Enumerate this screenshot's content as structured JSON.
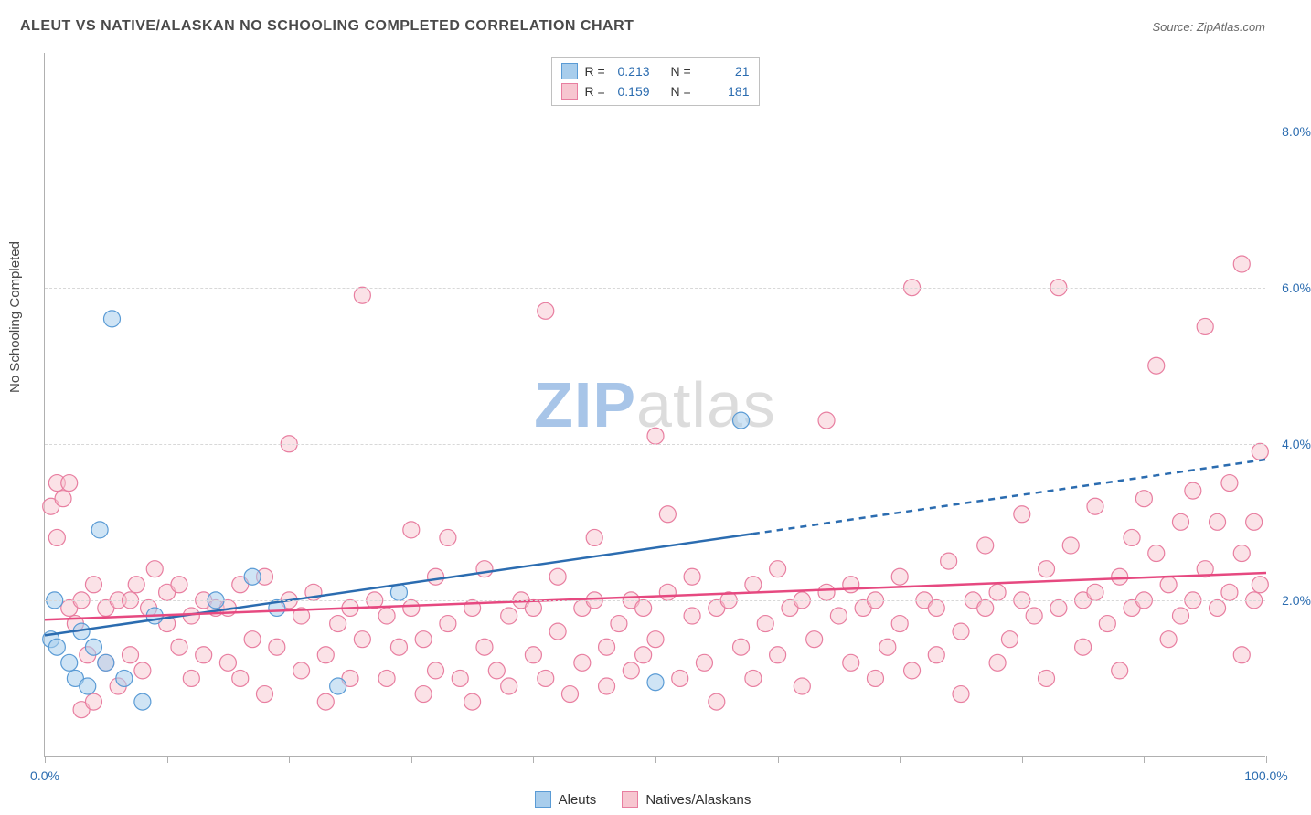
{
  "title": "ALEUT VS NATIVE/ALASKAN NO SCHOOLING COMPLETED CORRELATION CHART",
  "source": "Source: ZipAtlas.com",
  "y_axis_label": "No Schooling Completed",
  "watermark": {
    "left": "ZIP",
    "right": "atlas"
  },
  "chart": {
    "type": "scatter",
    "xlim": [
      0,
      100
    ],
    "ylim": [
      0,
      9
    ],
    "x_ticks": [
      0,
      10,
      20,
      30,
      40,
      50,
      60,
      70,
      80,
      90,
      100
    ],
    "x_tick_labels": {
      "0": "0.0%",
      "100": "100.0%"
    },
    "y_ticks": [
      2,
      4,
      6,
      8
    ],
    "y_tick_labels": [
      "2.0%",
      "4.0%",
      "6.0%",
      "8.0%"
    ],
    "background_color": "#ffffff",
    "grid_color": "#d8d8d8",
    "axis_color": "#b0b0b0",
    "tick_label_color": "#2b6cb0",
    "series": [
      {
        "name": "Aleuts",
        "fill": "#a8cdec",
        "stroke": "#5a9bd5",
        "fill_opacity": 0.55,
        "marker_radius": 9,
        "R": "0.213",
        "N": "21",
        "trend": {
          "x1": 0,
          "y1": 1.55,
          "x2_solid": 58,
          "y2_solid": 2.85,
          "x2": 100,
          "y2": 3.8,
          "stroke": "#2b6cb0",
          "width": 2.5
        },
        "points": [
          {
            "x": 0.5,
            "y": 1.5
          },
          {
            "x": 1,
            "y": 1.4
          },
          {
            "x": 0.8,
            "y": 2.0
          },
          {
            "x": 2,
            "y": 1.2
          },
          {
            "x": 2.5,
            "y": 1.0
          },
          {
            "x": 3,
            "y": 1.6
          },
          {
            "x": 3.5,
            "y": 0.9
          },
          {
            "x": 4,
            "y": 1.4
          },
          {
            "x": 4.5,
            "y": 2.9
          },
          {
            "x": 5,
            "y": 1.2
          },
          {
            "x": 5.5,
            "y": 5.6
          },
          {
            "x": 6.5,
            "y": 1.0
          },
          {
            "x": 8,
            "y": 0.7
          },
          {
            "x": 9,
            "y": 1.8
          },
          {
            "x": 14,
            "y": 2.0
          },
          {
            "x": 17,
            "y": 2.3
          },
          {
            "x": 19,
            "y": 1.9
          },
          {
            "x": 24,
            "y": 0.9
          },
          {
            "x": 29,
            "y": 2.1
          },
          {
            "x": 50,
            "y": 0.95
          },
          {
            "x": 57,
            "y": 4.3
          }
        ]
      },
      {
        "name": "Natives/Alaskans",
        "fill": "#f7c6d0",
        "stroke": "#e87ea0",
        "fill_opacity": 0.5,
        "marker_radius": 9,
        "R": "0.159",
        "N": "181",
        "trend": {
          "x1": 0,
          "y1": 1.75,
          "x2_solid": 100,
          "y2_solid": 2.35,
          "x2": 100,
          "y2": 2.35,
          "stroke": "#e64980",
          "width": 2.5
        },
        "points": [
          {
            "x": 0.5,
            "y": 3.2
          },
          {
            "x": 1,
            "y": 2.8
          },
          {
            "x": 1,
            "y": 3.5
          },
          {
            "x": 1.5,
            "y": 3.3
          },
          {
            "x": 2,
            "y": 1.9
          },
          {
            "x": 2,
            "y": 3.5
          },
          {
            "x": 2.5,
            "y": 1.7
          },
          {
            "x": 3,
            "y": 2.0
          },
          {
            "x": 3,
            "y": 0.6
          },
          {
            "x": 3.5,
            "y": 1.3
          },
          {
            "x": 4,
            "y": 2.2
          },
          {
            "x": 4,
            "y": 0.7
          },
          {
            "x": 5,
            "y": 1.9
          },
          {
            "x": 5,
            "y": 1.2
          },
          {
            "x": 6,
            "y": 2.0
          },
          {
            "x": 6,
            "y": 0.9
          },
          {
            "x": 7,
            "y": 2.0
          },
          {
            "x": 7,
            "y": 1.3
          },
          {
            "x": 7.5,
            "y": 2.2
          },
          {
            "x": 8,
            "y": 1.1
          },
          {
            "x": 8.5,
            "y": 1.9
          },
          {
            "x": 9,
            "y": 2.4
          },
          {
            "x": 10,
            "y": 1.7
          },
          {
            "x": 10,
            "y": 2.1
          },
          {
            "x": 11,
            "y": 1.4
          },
          {
            "x": 11,
            "y": 2.2
          },
          {
            "x": 12,
            "y": 1.0
          },
          {
            "x": 12,
            "y": 1.8
          },
          {
            "x": 13,
            "y": 2.0
          },
          {
            "x": 13,
            "y": 1.3
          },
          {
            "x": 14,
            "y": 1.9
          },
          {
            "x": 15,
            "y": 1.2
          },
          {
            "x": 15,
            "y": 1.9
          },
          {
            "x": 16,
            "y": 1.0
          },
          {
            "x": 16,
            "y": 2.2
          },
          {
            "x": 17,
            "y": 1.5
          },
          {
            "x": 18,
            "y": 2.3
          },
          {
            "x": 18,
            "y": 0.8
          },
          {
            "x": 19,
            "y": 1.4
          },
          {
            "x": 20,
            "y": 2.0
          },
          {
            "x": 20,
            "y": 4.0
          },
          {
            "x": 21,
            "y": 1.1
          },
          {
            "x": 21,
            "y": 1.8
          },
          {
            "x": 22,
            "y": 2.1
          },
          {
            "x": 23,
            "y": 1.3
          },
          {
            "x": 23,
            "y": 0.7
          },
          {
            "x": 24,
            "y": 1.7
          },
          {
            "x": 25,
            "y": 1.0
          },
          {
            "x": 25,
            "y": 1.9
          },
          {
            "x": 26,
            "y": 5.9
          },
          {
            "x": 26,
            "y": 1.5
          },
          {
            "x": 27,
            "y": 2.0
          },
          {
            "x": 28,
            "y": 1.8
          },
          {
            "x": 28,
            "y": 1.0
          },
          {
            "x": 29,
            "y": 1.4
          },
          {
            "x": 30,
            "y": 1.9
          },
          {
            "x": 30,
            "y": 2.9
          },
          {
            "x": 31,
            "y": 0.8
          },
          {
            "x": 31,
            "y": 1.5
          },
          {
            "x": 32,
            "y": 2.3
          },
          {
            "x": 32,
            "y": 1.1
          },
          {
            "x": 33,
            "y": 2.8
          },
          {
            "x": 33,
            "y": 1.7
          },
          {
            "x": 34,
            "y": 1.0
          },
          {
            "x": 35,
            "y": 1.9
          },
          {
            "x": 35,
            "y": 0.7
          },
          {
            "x": 36,
            "y": 1.4
          },
          {
            "x": 36,
            "y": 2.4
          },
          {
            "x": 37,
            "y": 1.1
          },
          {
            "x": 38,
            "y": 1.8
          },
          {
            "x": 38,
            "y": 0.9
          },
          {
            "x": 39,
            "y": 2.0
          },
          {
            "x": 40,
            "y": 1.3
          },
          {
            "x": 40,
            "y": 1.9
          },
          {
            "x": 41,
            "y": 5.7
          },
          {
            "x": 41,
            "y": 1.0
          },
          {
            "x": 42,
            "y": 2.3
          },
          {
            "x": 42,
            "y": 1.6
          },
          {
            "x": 43,
            "y": 0.8
          },
          {
            "x": 44,
            "y": 1.9
          },
          {
            "x": 44,
            "y": 1.2
          },
          {
            "x": 45,
            "y": 2.8
          },
          {
            "x": 45,
            "y": 2.0
          },
          {
            "x": 46,
            "y": 1.4
          },
          {
            "x": 46,
            "y": 0.9
          },
          {
            "x": 47,
            "y": 1.7
          },
          {
            "x": 48,
            "y": 2.0
          },
          {
            "x": 48,
            "y": 1.1
          },
          {
            "x": 49,
            "y": 1.3
          },
          {
            "x": 49,
            "y": 1.9
          },
          {
            "x": 50,
            "y": 4.1
          },
          {
            "x": 50,
            "y": 1.5
          },
          {
            "x": 51,
            "y": 2.1
          },
          {
            "x": 51,
            "y": 3.1
          },
          {
            "x": 52,
            "y": 1.0
          },
          {
            "x": 53,
            "y": 1.8
          },
          {
            "x": 53,
            "y": 2.3
          },
          {
            "x": 54,
            "y": 1.2
          },
          {
            "x": 55,
            "y": 1.9
          },
          {
            "x": 55,
            "y": 0.7
          },
          {
            "x": 56,
            "y": 2.0
          },
          {
            "x": 57,
            "y": 1.4
          },
          {
            "x": 58,
            "y": 2.2
          },
          {
            "x": 58,
            "y": 1.0
          },
          {
            "x": 59,
            "y": 1.7
          },
          {
            "x": 60,
            "y": 2.4
          },
          {
            "x": 60,
            "y": 1.3
          },
          {
            "x": 61,
            "y": 1.9
          },
          {
            "x": 62,
            "y": 2.0
          },
          {
            "x": 62,
            "y": 0.9
          },
          {
            "x": 63,
            "y": 1.5
          },
          {
            "x": 64,
            "y": 2.1
          },
          {
            "x": 64,
            "y": 4.3
          },
          {
            "x": 65,
            "y": 1.8
          },
          {
            "x": 66,
            "y": 1.2
          },
          {
            "x": 66,
            "y": 2.2
          },
          {
            "x": 67,
            "y": 1.9
          },
          {
            "x": 68,
            "y": 2.0
          },
          {
            "x": 68,
            "y": 1.0
          },
          {
            "x": 69,
            "y": 1.4
          },
          {
            "x": 70,
            "y": 2.3
          },
          {
            "x": 70,
            "y": 1.7
          },
          {
            "x": 71,
            "y": 6.0
          },
          {
            "x": 71,
            "y": 1.1
          },
          {
            "x": 72,
            "y": 2.0
          },
          {
            "x": 73,
            "y": 1.3
          },
          {
            "x": 73,
            "y": 1.9
          },
          {
            "x": 74,
            "y": 2.5
          },
          {
            "x": 75,
            "y": 1.6
          },
          {
            "x": 75,
            "y": 0.8
          },
          {
            "x": 76,
            "y": 2.0
          },
          {
            "x": 77,
            "y": 1.9
          },
          {
            "x": 77,
            "y": 2.7
          },
          {
            "x": 78,
            "y": 1.2
          },
          {
            "x": 78,
            "y": 2.1
          },
          {
            "x": 79,
            "y": 1.5
          },
          {
            "x": 80,
            "y": 2.0
          },
          {
            "x": 80,
            "y": 3.1
          },
          {
            "x": 81,
            "y": 1.8
          },
          {
            "x": 82,
            "y": 2.4
          },
          {
            "x": 82,
            "y": 1.0
          },
          {
            "x": 83,
            "y": 1.9
          },
          {
            "x": 83,
            "y": 6.0
          },
          {
            "x": 84,
            "y": 2.7
          },
          {
            "x": 85,
            "y": 1.4
          },
          {
            "x": 85,
            "y": 2.0
          },
          {
            "x": 86,
            "y": 3.2
          },
          {
            "x": 86,
            "y": 2.1
          },
          {
            "x": 87,
            "y": 1.7
          },
          {
            "x": 88,
            "y": 2.3
          },
          {
            "x": 88,
            "y": 1.1
          },
          {
            "x": 89,
            "y": 2.8
          },
          {
            "x": 89,
            "y": 1.9
          },
          {
            "x": 90,
            "y": 3.3
          },
          {
            "x": 90,
            "y": 2.0
          },
          {
            "x": 91,
            "y": 2.6
          },
          {
            "x": 91,
            "y": 5.0
          },
          {
            "x": 92,
            "y": 1.5
          },
          {
            "x": 92,
            "y": 2.2
          },
          {
            "x": 93,
            "y": 3.0
          },
          {
            "x": 93,
            "y": 1.8
          },
          {
            "x": 94,
            "y": 2.0
          },
          {
            "x": 94,
            "y": 3.4
          },
          {
            "x": 95,
            "y": 5.5
          },
          {
            "x": 95,
            "y": 2.4
          },
          {
            "x": 96,
            "y": 1.9
          },
          {
            "x": 96,
            "y": 3.0
          },
          {
            "x": 97,
            "y": 2.1
          },
          {
            "x": 97,
            "y": 3.5
          },
          {
            "x": 98,
            "y": 2.6
          },
          {
            "x": 98,
            "y": 6.3
          },
          {
            "x": 98,
            "y": 1.3
          },
          {
            "x": 99,
            "y": 3.0
          },
          {
            "x": 99,
            "y": 2.0
          },
          {
            "x": 99.5,
            "y": 3.9
          },
          {
            "x": 99.5,
            "y": 2.2
          }
        ]
      }
    ]
  },
  "legend_bottom": [
    {
      "label": "Aleuts",
      "swatch_fill": "#a8cdec",
      "swatch_stroke": "#5a9bd5"
    },
    {
      "label": "Natives/Alaskans",
      "swatch_fill": "#f7c6d0",
      "swatch_stroke": "#e87ea0"
    }
  ]
}
